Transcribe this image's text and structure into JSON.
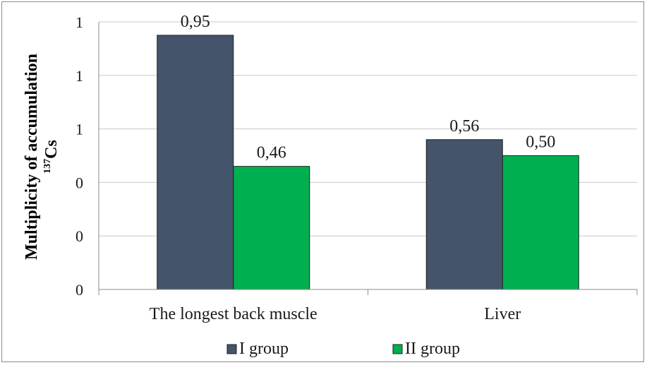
{
  "chart_data": {
    "type": "bar",
    "categories": [
      "The longest back muscle",
      "Liver"
    ],
    "series": [
      {
        "name": "I group",
        "values": [
          0.95,
          0.56
        ],
        "labels": [
          "0,95",
          "0,56"
        ],
        "color": "#44546a"
      },
      {
        "name": "II group",
        "values": [
          0.46,
          0.5
        ],
        "labels": [
          "0,46",
          "0,50"
        ],
        "color": "#00b050"
      }
    ],
    "ylim": [
      0,
      1.0
    ],
    "yticks": [
      0,
      0.2,
      0.4,
      0.6,
      0.8,
      1.0
    ],
    "ytick_labels": [
      "0",
      "0",
      "0",
      "1",
      "1",
      "1"
    ],
    "ylabel": "Multiplicity of accumulation",
    "ylabel_line2_sup": "137",
    "ylabel_line2": "Cs",
    "xlabel": "",
    "grid": true,
    "legend_position": "bottom"
  }
}
